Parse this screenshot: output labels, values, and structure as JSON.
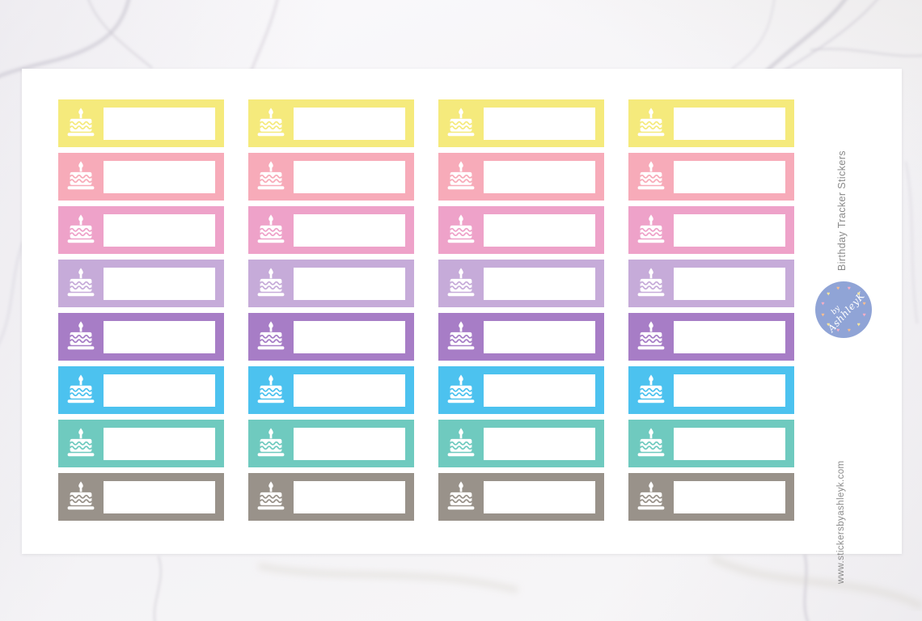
{
  "product": {
    "title": "Birthday Tracker Stickers",
    "website": "www.stickersbyashleyk.com",
    "side_text_color": "#8b8b8b"
  },
  "stickers": {
    "columns": 4,
    "label_value": "",
    "icon": "birthday-cake-icon",
    "rows": [
      {
        "name": "yellow",
        "color": "#f5ea7c"
      },
      {
        "name": "salmon",
        "color": "#f7abb9"
      },
      {
        "name": "pink",
        "color": "#eea2c9"
      },
      {
        "name": "lavender",
        "color": "#c6abd9"
      },
      {
        "name": "purple",
        "color": "#a77dc6"
      },
      {
        "name": "blue",
        "color": "#4cc2ef"
      },
      {
        "name": "teal",
        "color": "#6fcabf"
      },
      {
        "name": "grey",
        "color": "#99928a"
      }
    ]
  },
  "logo": {
    "line1": "by",
    "line2": "AshhleyK",
    "circle_color": "#90a4d6",
    "heart_glyph": "♥",
    "heart_colors": [
      "#f3aec6",
      "#f6e49d",
      "#f4bd92"
    ]
  }
}
